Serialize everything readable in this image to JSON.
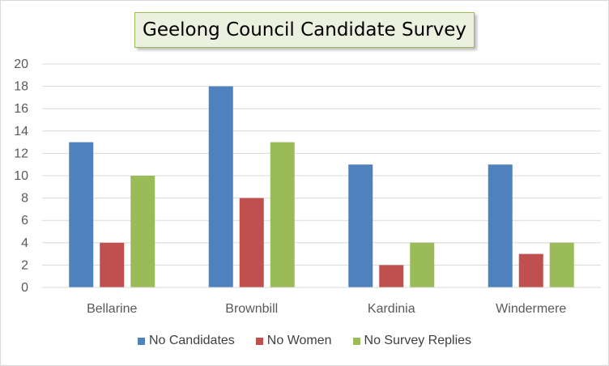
{
  "chart_data": {
    "type": "bar",
    "title": "Geelong Council Candidate Survey",
    "categories": [
      "Bellarine",
      "Brownbill",
      "Kardinia",
      "Windermere"
    ],
    "series": [
      {
        "name": "No Candidates",
        "color": "#4f81bd",
        "values": [
          13,
          18,
          11,
          11
        ]
      },
      {
        "name": "No Women",
        "color": "#c0504d",
        "values": [
          4,
          8,
          2,
          3
        ]
      },
      {
        "name": "No Survey Replies",
        "color": "#9bbb59",
        "values": [
          10,
          13,
          4,
          4
        ]
      }
    ],
    "ylim": [
      0,
      20
    ],
    "yticks": [
      "0",
      "2",
      "4",
      "6",
      "8",
      "10",
      "12",
      "14",
      "16",
      "18",
      "20"
    ],
    "grid": true,
    "legend_position": "bottom"
  }
}
